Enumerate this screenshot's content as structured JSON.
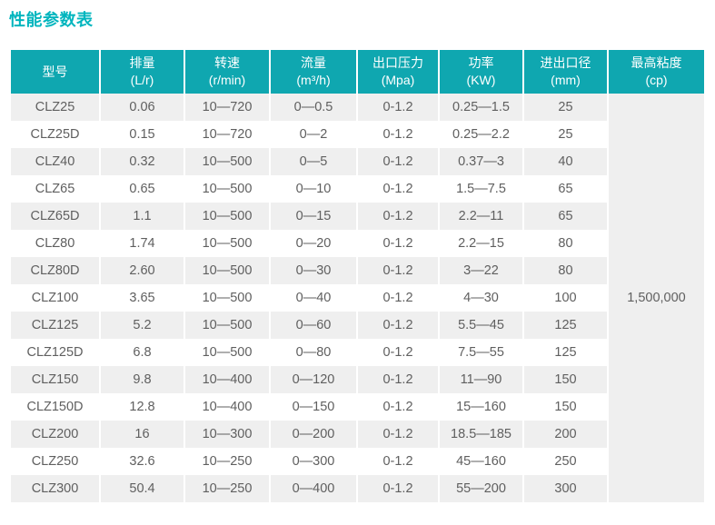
{
  "title": "性能参数表",
  "colors": {
    "header_bg": "#0fa7b0",
    "title_text": "#00b5be",
    "row_stripe": "#efefef",
    "body_text": "#5f5f5f"
  },
  "table": {
    "columns": [
      {
        "label": "型号",
        "unit": ""
      },
      {
        "label": "排量",
        "unit": "(L/r)"
      },
      {
        "label": "转速",
        "unit": "(r/min)"
      },
      {
        "label": "流量",
        "unit": "(m³/h)"
      },
      {
        "label": "出口压力",
        "unit": "(Mpa)"
      },
      {
        "label": "功率",
        "unit": "(KW)"
      },
      {
        "label": "进出口径",
        "unit": "(mm)"
      },
      {
        "label": "最高粘度",
        "unit": "(cp)"
      }
    ],
    "max_viscosity": "1,500,000",
    "rows": [
      [
        "CLZ25",
        "0.06",
        "10—720",
        "0—0.5",
        "0-1.2",
        "0.25—1.5",
        "25"
      ],
      [
        "CLZ25D",
        "0.15",
        "10—720",
        "0—2",
        "0-1.2",
        "0.25—2.2",
        "25"
      ],
      [
        "CLZ40",
        "0.32",
        "10—500",
        "0—5",
        "0-1.2",
        "0.37—3",
        "40"
      ],
      [
        "CLZ65",
        "0.65",
        "10—500",
        "0—10",
        "0-1.2",
        "1.5—7.5",
        "65"
      ],
      [
        "CLZ65D",
        "1.1",
        "10—500",
        "0—15",
        "0-1.2",
        "2.2—11",
        "65"
      ],
      [
        "CLZ80",
        "1.74",
        "10—500",
        "0—20",
        "0-1.2",
        "2.2—15",
        "80"
      ],
      [
        "CLZ80D",
        "2.60",
        "10—500",
        "0—30",
        "0-1.2",
        "3—22",
        "80"
      ],
      [
        "CLZ100",
        "3.65",
        "10—500",
        "0—40",
        "0-1.2",
        "4—30",
        "100"
      ],
      [
        "CLZ125",
        "5.2",
        "10—500",
        "0—60",
        "0-1.2",
        "5.5—45",
        "125"
      ],
      [
        "CLZ125D",
        "6.8",
        "10—500",
        "0—80",
        "0-1.2",
        "7.5—55",
        "125"
      ],
      [
        "CLZ150",
        "9.8",
        "10—400",
        "0—120",
        "0-1.2",
        "11—90",
        "150"
      ],
      [
        "CLZ150D",
        "12.8",
        "10—400",
        "0—150",
        "0-1.2",
        "15—160",
        "150"
      ],
      [
        "CLZ200",
        "16",
        "10—300",
        "0—200",
        "0-1.2",
        "18.5—185",
        "200"
      ],
      [
        "CLZ250",
        "32.6",
        "10—250",
        "0—300",
        "0-1.2",
        "45—160",
        "250"
      ],
      [
        "CLZ300",
        "50.4",
        "10—250",
        "0—400",
        "0-1.2",
        "55—200",
        "300"
      ]
    ]
  }
}
